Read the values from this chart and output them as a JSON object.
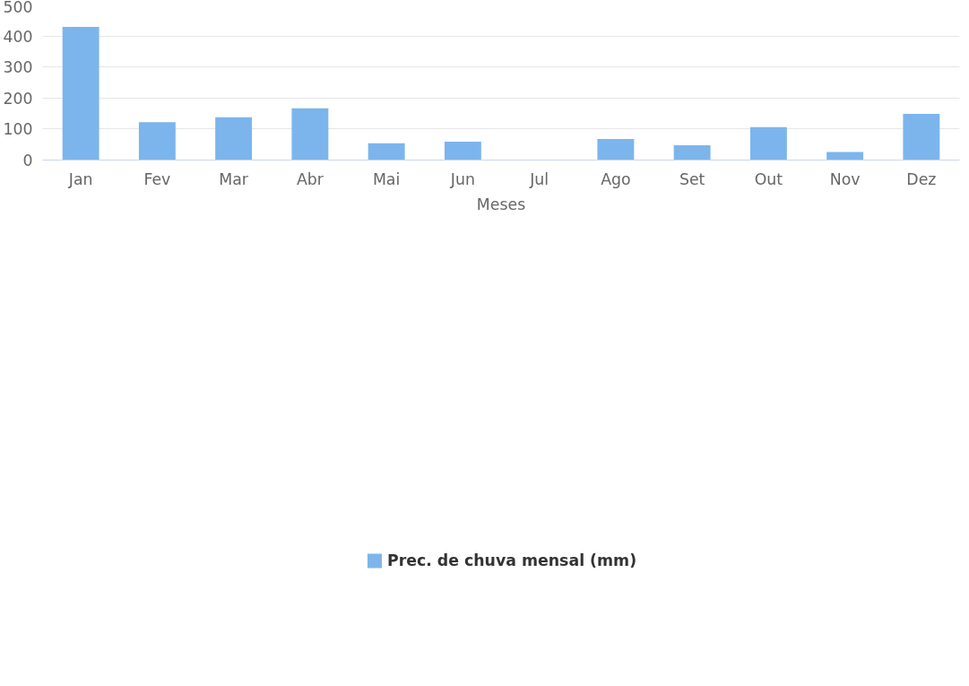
{
  "chart_data": {
    "type": "bar",
    "xlabel": "Meses",
    "categories": [
      "Jan",
      "Fev",
      "Mar",
      "Abr",
      "Mai",
      "Jun",
      "Jul",
      "Ago",
      "Set",
      "Out",
      "Nov",
      "Dez"
    ],
    "series": [
      {
        "name": "Prec. de chuva mensal (mm)",
        "color": "#7cb5ec",
        "values": [
          429,
          122,
          138,
          167,
          54,
          59,
          0,
          68,
          48,
          106,
          26,
          149
        ]
      }
    ],
    "ylim": [
      0,
      500
    ],
    "yticks": [
      0,
      100,
      200,
      300,
      400,
      500
    ],
    "grid": "y",
    "legend": "bottom"
  }
}
